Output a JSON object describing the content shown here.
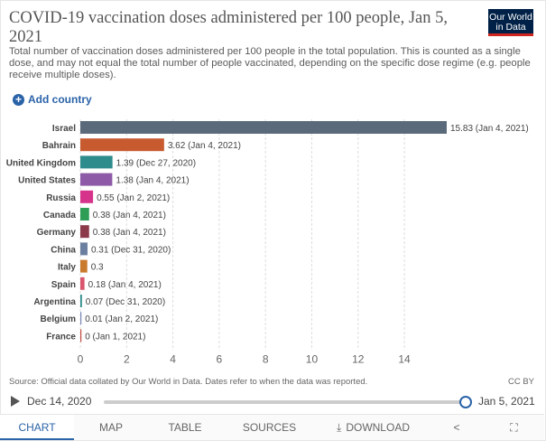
{
  "header": {
    "title": "COVID-19 vaccination doses administered per 100 people, Jan 5, 2021",
    "subtitle": "Total number of vaccination doses administered per 100 people in the total population. This is counted as a single dose, and may not equal the total number of people vaccinated, depending on the specific dose regime (e.g. people receive multiple doses).",
    "logo_line1": "Our World",
    "logo_line2": "in Data"
  },
  "controls": {
    "add_country": "Add country"
  },
  "chart_data": {
    "type": "bar",
    "orientation": "horizontal",
    "title": "COVID-19 vaccination doses administered per 100 people, Jan 5, 2021",
    "xlim": [
      0,
      15.83
    ],
    "xticks": [
      0,
      2,
      4,
      6,
      8,
      10,
      12,
      14
    ],
    "categories": [
      "Israel",
      "Bahrain",
      "United Kingdom",
      "United States",
      "Russia",
      "Canada",
      "Germany",
      "China",
      "Italy",
      "Spain",
      "Argentina",
      "Belgium",
      "France"
    ],
    "values": [
      15.83,
      3.62,
      1.39,
      1.38,
      0.55,
      0.38,
      0.38,
      0.31,
      0.3,
      0.18,
      0.07,
      0.01,
      0
    ],
    "labels": [
      "15.83 (Jan 4, 2021)",
      "3.62 (Jan 4, 2021)",
      "1.39 (Dec 27, 2020)",
      "1.38 (Jan 4, 2021)",
      "0.55 (Jan 2, 2021)",
      "0.38 (Jan 4, 2021)",
      "0.38 (Jan 4, 2021)",
      "0.31 (Dec 31, 2020)",
      "0.3",
      "0.18 (Jan 4, 2021)",
      "0.07 (Dec 31, 2020)",
      "0.01 (Jan 2, 2021)",
      "0 (Jan 1, 2021)"
    ],
    "colors": [
      "#5b6a7b",
      "#c85a2f",
      "#2f8c8c",
      "#8e5aa8",
      "#d6338a",
      "#2e9e57",
      "#8c3a4a",
      "#6b7fa0",
      "#c97a2c",
      "#d9566d",
      "#2f8c8c",
      "#7a86b5",
      "#c44a3f"
    ]
  },
  "footer": {
    "source": "Source: Official data collated by Our World in Data. Dates refer to when the data was reported.",
    "license": "CC BY"
  },
  "timeline": {
    "start": "Dec 14, 2020",
    "end": "Jan 5, 2021"
  },
  "tabs": [
    "CHART",
    "MAP",
    "TABLE",
    "SOURCES",
    "DOWNLOAD"
  ]
}
